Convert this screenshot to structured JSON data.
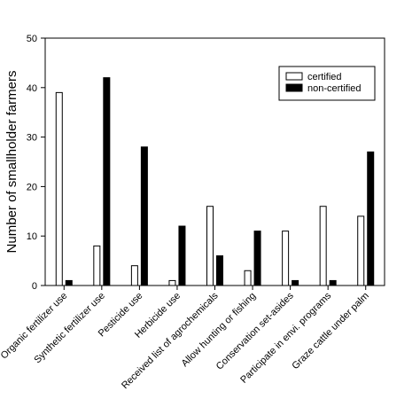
{
  "chart_data": {
    "type": "bar",
    "categories": [
      "Organic fertilizer use",
      "Synthetic fertilizer use",
      "Pesticide use",
      "Herbicide use",
      "Received list of agrochemicals",
      "Allow hunting or fishing",
      "Conservation set-asides",
      "Participate in envi. programs",
      "Graze cattle under palm"
    ],
    "series": [
      {
        "name": "certified",
        "color": "#ffffff",
        "values": [
          39,
          8,
          4,
          1,
          16,
          3,
          11,
          16,
          14
        ]
      },
      {
        "name": "non-certified",
        "color": "#000000",
        "values": [
          1,
          42,
          28,
          12,
          6,
          11,
          1,
          1,
          27
        ]
      }
    ],
    "title": "",
    "xlabel": "",
    "ylabel": "Number of smallholder farmers",
    "ylim": [
      0,
      50
    ],
    "yticks": [
      0,
      10,
      20,
      30,
      40,
      50
    ],
    "grid": false,
    "legend_position": "top-right"
  }
}
